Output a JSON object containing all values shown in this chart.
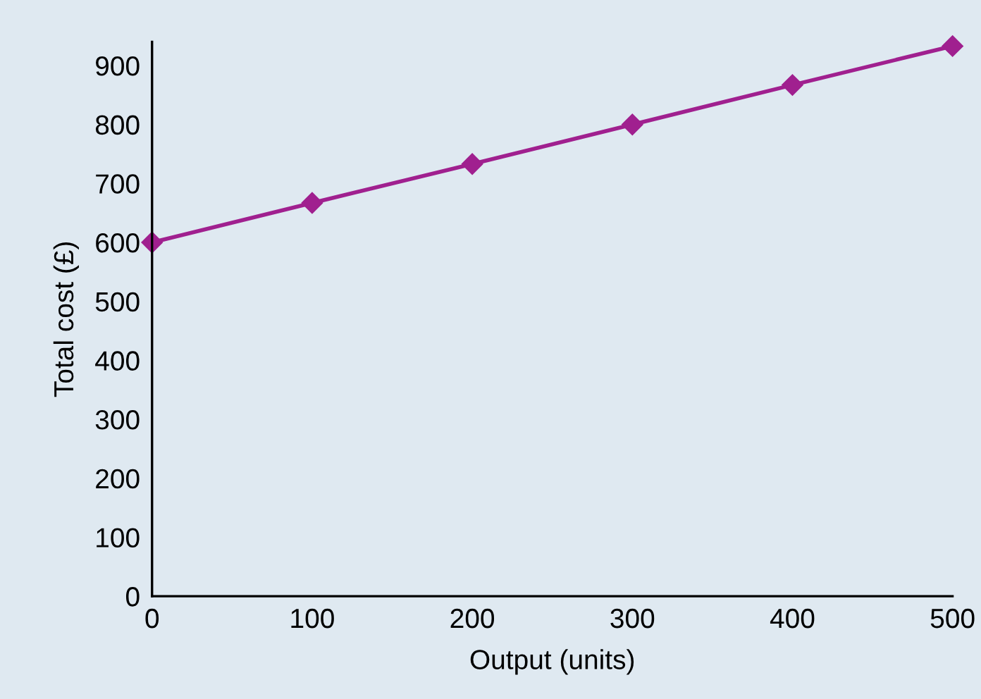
{
  "chart_data": {
    "type": "line",
    "xlabel": "Output (units)",
    "ylabel": "Total cost (£)",
    "x": [
      0,
      100,
      200,
      300,
      400,
      500
    ],
    "series": [
      {
        "color": "#a0208f",
        "values": [
          600,
          667,
          733,
          800,
          867,
          933
        ]
      }
    ],
    "xlim": [
      0,
      500
    ],
    "xticks": [
      0,
      100,
      200,
      300,
      400,
      500
    ],
    "ylim": [
      0,
      940
    ],
    "yticks": [
      0,
      100,
      200,
      300,
      400,
      500,
      600,
      700,
      800,
      900
    ],
    "marker": "diamond",
    "line_style": "solid",
    "grid": false,
    "legend": false
  }
}
